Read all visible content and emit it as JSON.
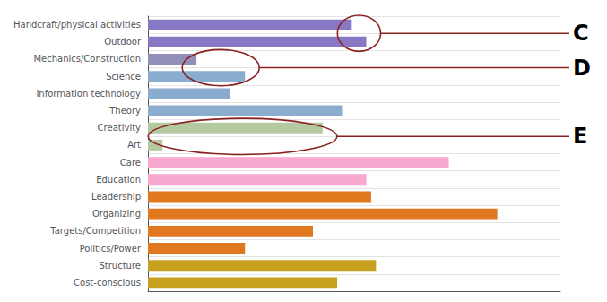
{
  "chart_data": {
    "type": "bar",
    "orientation": "horizontal",
    "categories": [
      "Handcraft/physical activities",
      "Outdoor",
      "Mechanics/Construction",
      "Science",
      "Information technology",
      "Theory",
      "Creativity",
      "Art",
      "Care",
      "Education",
      "Leadership",
      "Organizing",
      "Targets/Competition",
      "Politics/Power",
      "Structure",
      "Cost-conscious"
    ],
    "values": [
      42,
      45,
      10,
      20,
      17,
      40,
      36,
      3,
      62,
      45,
      46,
      72,
      34,
      20,
      47,
      39
    ],
    "colors": [
      "#8878c3",
      "#8878c3",
      "#9090b8",
      "#8aaccf",
      "#8aaccf",
      "#8aaccf",
      "#b5c9a0",
      "#b5c9a0",
      "#f9a8cf",
      "#f9a8cf",
      "#e07820",
      "#e07820",
      "#e07820",
      "#e07820",
      "#c8a020",
      "#c8a020"
    ],
    "xlim": [
      0,
      85
    ],
    "tick_labels": "y",
    "grid": true,
    "annotations": [
      {
        "text": "C",
        "categories": [
          "Handcraft/physical activities",
          "Outdoor"
        ]
      },
      {
        "text": "D",
        "categories": [
          "Mechanics/Construction",
          "Science"
        ]
      },
      {
        "text": "E",
        "categories": [
          "Creativity",
          "Art"
        ]
      }
    ]
  }
}
